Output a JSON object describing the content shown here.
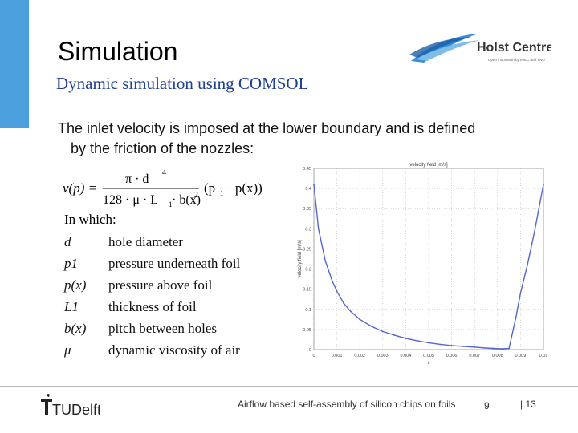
{
  "slide": {
    "title": "Simulation",
    "subtitle": "Dynamic simulation using COMSOL",
    "body_line1": "The inlet velocity is imposed at the lower boundary and is defined",
    "body_line2": "by the friction of the nozzles:",
    "in_which": "In which:",
    "definitions": [
      {
        "symbol": "d",
        "desc": "hole diameter"
      },
      {
        "symbol": "p1",
        "desc": "pressure underneath foil"
      },
      {
        "symbol": "p(x)",
        "desc": "pressure above foil"
      },
      {
        "symbol": "L1",
        "desc": "thickness of foil"
      },
      {
        "symbol": "b(x)",
        "desc": "pitch between holes"
      },
      {
        "symbol": "μ",
        "desc": "dynamic viscosity of air"
      }
    ],
    "formula": {
      "lhs": "v(p) =",
      "numerator": "π · d",
      "num_exp": "4",
      "denominator": "128 · μ · L",
      "den_sub": "1",
      "den_rest": " · b(x)",
      "den_exp": "2",
      "rhs": "(p",
      "rhs_sub": "1",
      "rhs_rest": " − p(x))"
    }
  },
  "logo": {
    "name": "Holst Centre",
    "tagline": "Open innovation by IMEC and TNO"
  },
  "footer": {
    "org": "TUDelft",
    "text": "Airflow based self-assembly of silicon chips on foils",
    "page": "9",
    "total": "| 13"
  },
  "colors": {
    "accent": "#4a9fdc",
    "subtitle": "#1f3f93",
    "curve": "#5566cc"
  },
  "chart_data": {
    "type": "line",
    "title": "velocity field [m/s]",
    "xlabel": "x",
    "ylabel": "velocity field [m/s]",
    "xlim": [
      0,
      0.01
    ],
    "ylim": [
      0,
      0.45
    ],
    "xticks": [
      "0",
      "0.001",
      "0.002",
      "0.003",
      "0.004",
      "0.005",
      "0.006",
      "0.007",
      "0.008",
      "0.009",
      "0.01"
    ],
    "yticks": [
      "0",
      "0.05",
      "0.1",
      "0.15",
      "0.2",
      "0.25",
      "0.3",
      "0.35",
      "0.4",
      "0.45"
    ],
    "grid": true,
    "series": [
      {
        "x": [
          0,
          0.0002,
          0.0005,
          0.0008,
          0.001,
          0.0013,
          0.0016,
          0.002,
          0.0025,
          0.003,
          0.0035,
          0.004,
          0.0045,
          0.005,
          0.0055,
          0.006,
          0.0065,
          0.007,
          0.0075,
          0.0078,
          0.0082,
          0.0085,
          0.0088,
          0.009,
          0.0093,
          0.0096,
          0.01
        ],
        "values": [
          0.41,
          0.3,
          0.22,
          0.17,
          0.145,
          0.115,
          0.095,
          0.075,
          0.058,
          0.045,
          0.036,
          0.028,
          0.022,
          0.017,
          0.013,
          0.01,
          0.008,
          0.006,
          0.004,
          0.003,
          0.002,
          0.003,
          0.08,
          0.14,
          0.21,
          0.29,
          0.41
        ]
      }
    ]
  }
}
